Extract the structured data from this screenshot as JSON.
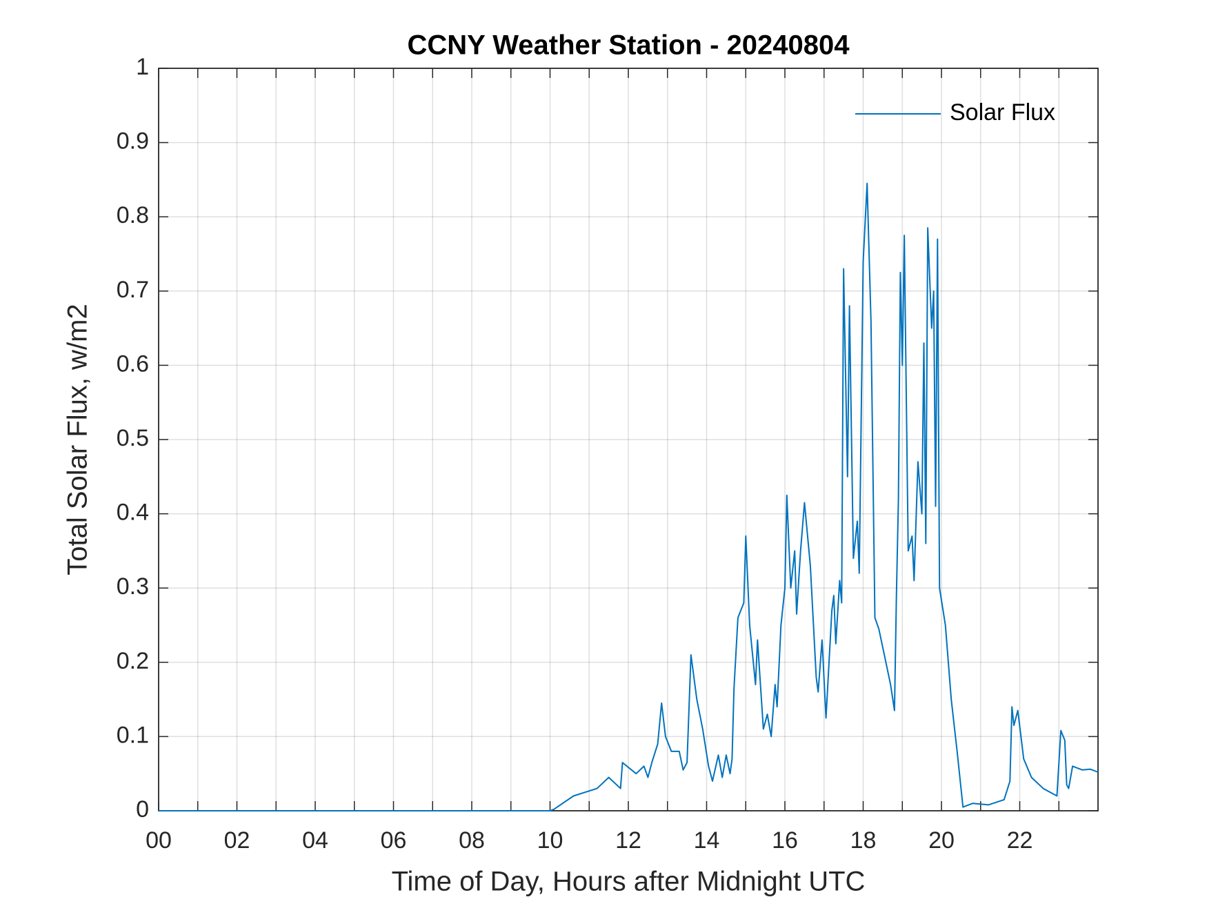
{
  "chart_data": {
    "type": "line",
    "title": "CCNY Weather Station - 20240804",
    "xlabel": "Time of Day, Hours after Midnight UTC",
    "ylabel": "Total Solar Flux, w/m2",
    "xlim": [
      0,
      24
    ],
    "ylim": [
      0,
      1
    ],
    "xticks": [
      {
        "value": 0,
        "label": "00"
      },
      {
        "value": 2,
        "label": "02"
      },
      {
        "value": 4,
        "label": "04"
      },
      {
        "value": 6,
        "label": "06"
      },
      {
        "value": 8,
        "label": "08"
      },
      10,
      12,
      14,
      16,
      18,
      20,
      22
    ],
    "minor_xticks": [
      1,
      3,
      5,
      7,
      9,
      11,
      13,
      15,
      17,
      19,
      21,
      23
    ],
    "yticks": [
      0,
      0.1,
      0.2,
      0.3,
      0.4,
      0.5,
      0.6,
      0.7,
      0.8,
      0.9,
      1
    ],
    "grid": true,
    "legend": "northeast",
    "series": [
      {
        "name": "Solar Flux",
        "color": "#0072bd",
        "x": [
          0,
          10.0,
          10.1,
          10.6,
          11.2,
          11.5,
          11.8,
          11.85,
          12.2,
          12.4,
          12.5,
          12.6,
          12.75,
          12.85,
          12.95,
          13.1,
          13.3,
          13.4,
          13.5,
          13.6,
          13.75,
          13.9,
          14.05,
          14.15,
          14.3,
          14.4,
          14.5,
          14.6,
          14.65,
          14.7,
          14.8,
          14.95,
          15.0,
          15.1,
          15.25,
          15.3,
          15.45,
          15.55,
          15.65,
          15.75,
          15.8,
          15.9,
          16.0,
          16.05,
          16.15,
          16.25,
          16.3,
          16.4,
          16.5,
          16.65,
          16.8,
          16.85,
          16.95,
          17.05,
          17.2,
          17.25,
          17.3,
          17.4,
          17.45,
          17.5,
          17.6,
          17.65,
          17.75,
          17.85,
          17.9,
          18.0,
          18.1,
          18.2,
          18.3,
          18.4,
          18.5,
          18.7,
          18.8,
          18.85,
          18.9,
          18.95,
          19.0,
          19.05,
          19.15,
          19.25,
          19.3,
          19.4,
          19.5,
          19.55,
          19.6,
          19.65,
          19.75,
          19.8,
          19.85,
          19.9,
          19.95,
          20.1,
          20.25,
          20.4,
          20.55,
          20.8,
          21.2,
          21.6,
          21.75,
          21.8,
          21.85,
          21.95,
          22.1,
          22.3,
          22.6,
          22.95,
          23.05,
          23.15,
          23.2,
          23.25,
          23.35,
          23.6,
          23.8,
          24
        ],
        "values": [
          0,
          0,
          0.002,
          0.02,
          0.03,
          0.045,
          0.03,
          0.065,
          0.05,
          0.06,
          0.045,
          0.065,
          0.09,
          0.145,
          0.1,
          0.08,
          0.08,
          0.055,
          0.065,
          0.21,
          0.15,
          0.11,
          0.06,
          0.04,
          0.075,
          0.045,
          0.075,
          0.05,
          0.07,
          0.165,
          0.26,
          0.28,
          0.37,
          0.25,
          0.17,
          0.23,
          0.11,
          0.13,
          0.1,
          0.17,
          0.14,
          0.25,
          0.3,
          0.425,
          0.3,
          0.35,
          0.265,
          0.35,
          0.415,
          0.33,
          0.18,
          0.16,
          0.23,
          0.125,
          0.27,
          0.29,
          0.225,
          0.31,
          0.28,
          0.73,
          0.45,
          0.68,
          0.34,
          0.39,
          0.32,
          0.74,
          0.845,
          0.66,
          0.26,
          0.245,
          0.22,
          0.17,
          0.135,
          0.29,
          0.42,
          0.725,
          0.6,
          0.775,
          0.35,
          0.37,
          0.31,
          0.47,
          0.4,
          0.63,
          0.36,
          0.785,
          0.65,
          0.7,
          0.41,
          0.77,
          0.3,
          0.25,
          0.15,
          0.08,
          0.005,
          0.01,
          0.008,
          0.015,
          0.04,
          0.14,
          0.115,
          0.135,
          0.07,
          0.045,
          0.03,
          0.02,
          0.108,
          0.095,
          0.035,
          0.03,
          0.06,
          0.055,
          0.056,
          0.052
        ]
      }
    ]
  }
}
